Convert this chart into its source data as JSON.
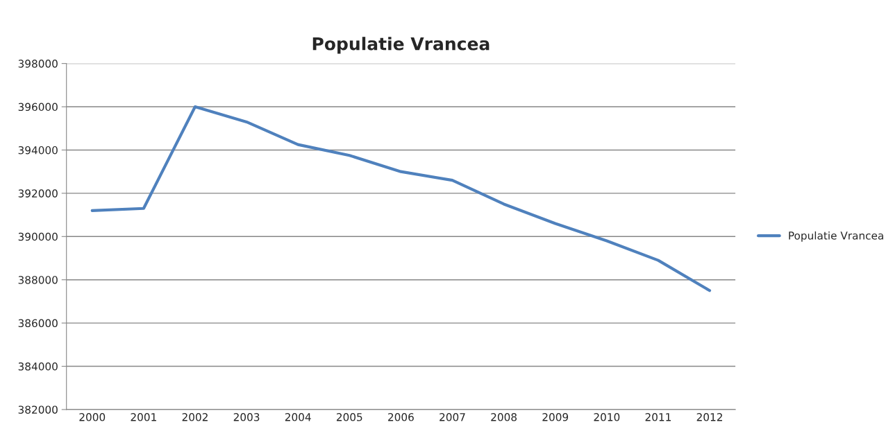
{
  "chart_data": {
    "type": "line",
    "title": "Populatie Vrancea",
    "categories": [
      "2000",
      "2001",
      "2002",
      "2003",
      "2004",
      "2005",
      "2006",
      "2007",
      "2008",
      "2009",
      "2010",
      "2011",
      "2012"
    ],
    "series": [
      {
        "name": "Populatie Vrancea",
        "color": "#4f81bd",
        "values": [
          391200,
          391300,
          396000,
          395300,
          394250,
          393750,
          393000,
          392600,
          391500,
          390600,
          389800,
          388900,
          387500
        ]
      }
    ],
    "ylim": [
      382000,
      398000
    ],
    "yticks": [
      382000,
      384000,
      386000,
      388000,
      390000,
      392000,
      394000,
      396000,
      398000
    ],
    "grid": "y",
    "legend": "right",
    "marker": "none",
    "line_style": "solid"
  }
}
